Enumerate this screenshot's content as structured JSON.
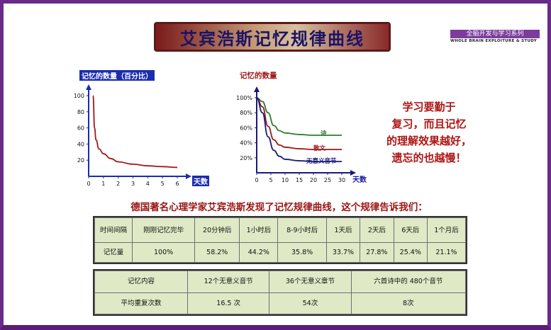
{
  "title": "艾宾浩斯记忆规律曲线",
  "series": {
    "name": "全脑开发与学习系列",
    "subtitle": "WHOLE BRAIN EXPLOITURE & STUDY"
  },
  "chart1": {
    "title": "记忆的数量（百分比）",
    "xlabel": "天数",
    "yticks": [
      "100",
      "80",
      "60",
      "40",
      "20"
    ],
    "xticks": [
      "0",
      "1",
      "2",
      "3",
      "4",
      "5",
      "6"
    ]
  },
  "chart2": {
    "title": "记忆的数量",
    "xlabel": "天数",
    "yticks": [
      "100%",
      "80%",
      "60%",
      "40%",
      "20%"
    ],
    "xticks": [
      "0",
      "5",
      "10",
      "15",
      "20",
      "25",
      "30"
    ],
    "series_labels": [
      "诗",
      "散文",
      "无意义音节"
    ]
  },
  "chart_data": [
    {
      "type": "line",
      "title": "记忆的数量（百分比）",
      "xlabel": "天数",
      "ylabel": "",
      "xlim": [
        0,
        6
      ],
      "ylim": [
        0,
        100
      ],
      "series": [
        {
          "x": [
            0.3,
            0.4,
            0.5,
            0.7,
            1,
            1.5,
            2,
            3,
            4,
            5,
            6
          ],
          "values": [
            100,
            60,
            45,
            34,
            28,
            22,
            18,
            15,
            13,
            12,
            11
          ],
          "color": "#a01818"
        }
      ]
    },
    {
      "type": "line",
      "title": "记忆的数量",
      "xlabel": "天数",
      "ylabel": "",
      "xlim": [
        0,
        30
      ],
      "ylim": [
        0,
        100
      ],
      "series": [
        {
          "name": "诗",
          "x": [
            0,
            2,
            4,
            6,
            8,
            10,
            15,
            20,
            25,
            30
          ],
          "values": [
            100,
            95,
            80,
            63,
            56,
            53,
            51,
            50,
            50,
            50
          ],
          "color": "#2e7d2e"
        },
        {
          "name": "散文",
          "x": [
            0,
            2,
            4,
            6,
            8,
            10,
            15,
            20,
            25,
            30
          ],
          "values": [
            100,
            88,
            62,
            44,
            37,
            34,
            32,
            31,
            31,
            31
          ],
          "color": "#a01818"
        },
        {
          "name": "无意义音节",
          "x": [
            0,
            2,
            4,
            6,
            8,
            10,
            15,
            20,
            25,
            30
          ],
          "values": [
            100,
            80,
            48,
            30,
            22,
            18,
            16,
            15,
            15,
            15
          ],
          "color": "#1a1a7a"
        }
      ]
    }
  ],
  "tip": [
    "学习要勤于",
    "复习，而且记忆",
    "的理解效果越好，",
    "遗忘的也越慢！"
  ],
  "description": "德国著名心理学家艾宾浩斯发现了记忆规律曲线，这个规律告诉我们：",
  "table1": {
    "header": [
      "时间间隔",
      "刚刚记忆完毕",
      "20分钟后",
      "1小时后",
      "8-9小时后",
      "1天后",
      "2天后",
      "6天后",
      "1个月后"
    ],
    "row": [
      "记忆量",
      "100%",
      "58.2%",
      "44.2%",
      "35.8%",
      "33.7%",
      "27.8%",
      "25.4%",
      "21.1%"
    ]
  },
  "table2": {
    "header": [
      "记忆内容",
      "12个无意义音节",
      "36个无意义章节",
      "六首诗中的 480个音节"
    ],
    "row": [
      "平均重复次数",
      "16.5 次",
      "54次",
      "8次"
    ]
  },
  "colors": {
    "frame": "#6a2a8a",
    "title_text": "#1b1464",
    "accent_red": "#b01515",
    "axis_blue": "#1b2cb0",
    "table_bg": "#dfe9c6"
  }
}
